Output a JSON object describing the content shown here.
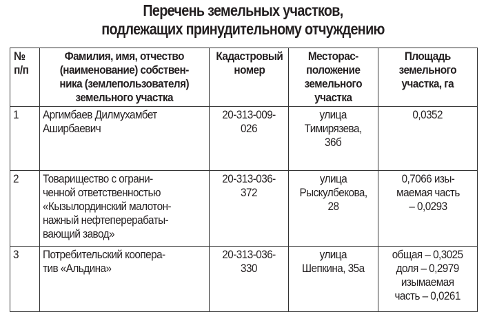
{
  "title": "Перечень земельных участков,\nподлежащих принудительному отчуждению",
  "table": {
    "headers": [
      "№\nп/п",
      "Фамилия, имя, отчество\n(наименование) собствен-\nника (землепользователя)\nземельного участка",
      "Кадастровый\nномер",
      "Месторас-\nположение\nземельного\nучастка",
      "Площадь\nземельного\nучастка, га"
    ],
    "rows": [
      [
        "1",
        "Аргимбаев Дилмухамбет\nАширбаевич",
        "20-313-009-\n026",
        "улица\nТимирязева,\n36б",
        "0,0352"
      ],
      [
        "2",
        "Товарищество с ограни-\nченной ответственностью\n«Кызылординский малотон-\nнажный нефтеперерабаты-\nвающий завод»",
        "20-313-036-\n372",
        "улица\nРыскулбекова,\n28",
        "0,7066 изы-\nмаемая часть\n– 0,0293"
      ],
      [
        "3",
        "Потребительский коопера-\nтив «Альдина»",
        "20-313-036-\n330",
        "улица\nШепкина, 35а",
        "общая – 0,3025\nдоля – 0,2979\nизымаемая\nчасть – 0,0261"
      ]
    ]
  }
}
